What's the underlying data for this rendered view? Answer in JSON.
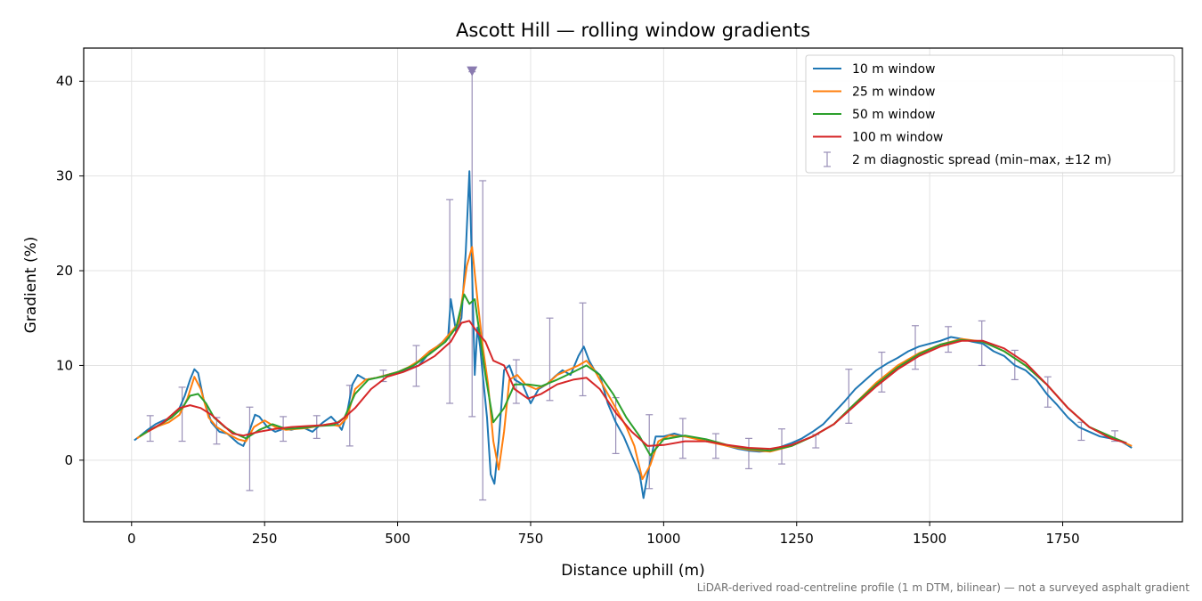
{
  "chart_data": {
    "type": "line",
    "title": "Ascott Hill — rolling window gradients",
    "xlabel": "Distance uphill (m)",
    "ylabel": "Gradient (%)",
    "xlim": [
      -90,
      1975
    ],
    "ylim": [
      -6.5,
      43.5
    ],
    "xticks": [
      0,
      250,
      500,
      750,
      1000,
      1250,
      1500,
      1750
    ],
    "yticks": [
      0,
      10,
      20,
      30,
      40
    ],
    "grid": true,
    "legend_position": "top-right",
    "footnote": "LiDAR-derived road-centreline profile (1 m DTM, bilinear) — not a surveyed asphalt gradient",
    "series": [
      {
        "name": "10 m window",
        "color": "#1f77b4",
        "x": [
          5,
          15,
          30,
          45,
          60,
          75,
          90,
          100,
          110,
          118,
          125,
          135,
          150,
          165,
          180,
          190,
          200,
          210,
          220,
          232,
          240,
          255,
          270,
          285,
          300,
          320,
          340,
          360,
          375,
          385,
          395,
          405,
          415,
          425,
          440,
          460,
          480,
          500,
          520,
          540,
          555,
          570,
          585,
          595,
          600,
          610,
          620,
          628,
          635,
          640,
          645,
          650,
          655,
          660,
          668,
          675,
          682,
          690,
          700,
          710,
          720,
          735,
          750,
          765,
          780,
          795,
          810,
          825,
          840,
          850,
          860,
          870,
          880,
          895,
          910,
          925,
          940,
          955,
          962,
          970,
          985,
          1000,
          1020,
          1040,
          1060,
          1080,
          1100,
          1120,
          1140,
          1160,
          1180,
          1200,
          1220,
          1240,
          1260,
          1280,
          1300,
          1320,
          1340,
          1360,
          1380,
          1400,
          1420,
          1440,
          1460,
          1480,
          1500,
          1520,
          1540,
          1560,
          1580,
          1600,
          1620,
          1640,
          1660,
          1680,
          1700,
          1720,
          1740,
          1760,
          1780,
          1800,
          1820,
          1840,
          1860,
          1880
        ],
        "y": [
          2.1,
          2.5,
          3.2,
          3.8,
          4.2,
          4.5,
          5.5,
          6.8,
          8.5,
          9.6,
          9.2,
          6.5,
          4.0,
          3.0,
          2.8,
          2.3,
          1.8,
          1.5,
          2.8,
          4.8,
          4.6,
          3.5,
          3.0,
          3.3,
          3.2,
          3.5,
          3.0,
          4.0,
          4.6,
          4.0,
          3.2,
          5.0,
          8.0,
          9.0,
          8.5,
          8.7,
          9.0,
          9.3,
          9.6,
          10.0,
          11.0,
          11.8,
          12.5,
          13.0,
          17.0,
          13.5,
          15.0,
          22.0,
          30.5,
          20.0,
          9.0,
          14.0,
          12.0,
          9.0,
          4.5,
          -1.5,
          -2.5,
          2.0,
          9.5,
          10.0,
          8.5,
          8.0,
          6.0,
          7.5,
          8.0,
          8.8,
          9.5,
          9.0,
          11.0,
          12.0,
          10.5,
          9.5,
          9.0,
          6.0,
          4.0,
          2.5,
          0.5,
          -1.5,
          -4.0,
          -1.5,
          2.5,
          2.5,
          2.8,
          2.5,
          2.3,
          2.0,
          1.8,
          1.5,
          1.2,
          1.0,
          0.9,
          1.0,
          1.4,
          1.8,
          2.3,
          3.0,
          3.8,
          5.0,
          6.2,
          7.5,
          8.5,
          9.5,
          10.2,
          10.8,
          11.5,
          12.0,
          12.3,
          12.6,
          13.0,
          12.8,
          12.5,
          12.3,
          11.5,
          11.0,
          10.0,
          9.5,
          8.5,
          7.0,
          5.8,
          4.5,
          3.5,
          3.0,
          2.5,
          2.3,
          2.0,
          1.3
        ]
      },
      {
        "name": "25 m window",
        "color": "#ff7f0e",
        "x": [
          10,
          30,
          50,
          70,
          90,
          105,
          118,
          130,
          145,
          160,
          180,
          200,
          215,
          230,
          250,
          270,
          290,
          310,
          330,
          350,
          370,
          390,
          405,
          420,
          440,
          460,
          480,
          500,
          520,
          540,
          560,
          580,
          600,
          615,
          630,
          640,
          650,
          660,
          670,
          680,
          690,
          700,
          710,
          725,
          740,
          760,
          780,
          800,
          820,
          840,
          855,
          870,
          890,
          910,
          930,
          945,
          960,
          975,
          990,
          1010,
          1040,
          1080,
          1120,
          1160,
          1200,
          1240,
          1280,
          1320,
          1360,
          1400,
          1440,
          1480,
          1520,
          1560,
          1600,
          1640,
          1680,
          1720,
          1760,
          1800,
          1840,
          1880
        ],
        "y": [
          2.3,
          3.0,
          3.6,
          4.0,
          4.8,
          6.5,
          8.8,
          7.5,
          4.5,
          3.5,
          2.8,
          2.2,
          2.0,
          3.5,
          4.2,
          3.5,
          3.2,
          3.3,
          3.4,
          3.6,
          3.8,
          3.6,
          4.5,
          7.5,
          8.5,
          8.7,
          9.0,
          9.3,
          9.8,
          10.5,
          11.5,
          12.2,
          13.5,
          14.5,
          20.5,
          22.5,
          17.0,
          12.0,
          8.0,
          2.0,
          -1.0,
          3.0,
          8.5,
          9.0,
          8.0,
          7.5,
          8.0,
          9.0,
          9.5,
          10.0,
          10.5,
          9.5,
          7.5,
          5.5,
          3.5,
          1.5,
          -2.0,
          -0.5,
          2.0,
          2.6,
          2.5,
          2.0,
          1.5,
          1.1,
          0.9,
          1.5,
          2.5,
          3.8,
          6.0,
          8.2,
          10.0,
          11.3,
          12.2,
          12.8,
          12.5,
          11.5,
          10.0,
          8.0,
          5.5,
          3.5,
          2.5,
          1.5
        ]
      },
      {
        "name": "50 m window",
        "color": "#2ca02c",
        "x": [
          15,
          35,
          55,
          75,
          95,
          110,
          125,
          140,
          155,
          175,
          195,
          215,
          240,
          265,
          290,
          320,
          350,
          380,
          400,
          420,
          445,
          470,
          500,
          530,
          560,
          590,
          610,
          625,
          635,
          645,
          655,
          665,
          680,
          700,
          720,
          745,
          770,
          800,
          830,
          855,
          880,
          905,
          930,
          955,
          975,
          1000,
          1040,
          1080,
          1120,
          1160,
          1200,
          1240,
          1280,
          1320,
          1360,
          1400,
          1440,
          1480,
          1520,
          1560,
          1600,
          1640,
          1680,
          1720,
          1760,
          1800,
          1840,
          1870
        ],
        "y": [
          2.5,
          3.2,
          3.8,
          4.5,
          5.5,
          6.8,
          7.0,
          6.0,
          4.5,
          3.5,
          2.8,
          2.3,
          3.2,
          3.8,
          3.3,
          3.4,
          3.6,
          3.7,
          4.5,
          7.0,
          8.5,
          8.8,
          9.3,
          10.0,
          11.2,
          12.5,
          14.0,
          17.5,
          16.5,
          17.0,
          13.0,
          9.0,
          4.0,
          5.5,
          8.0,
          8.0,
          7.8,
          8.5,
          9.3,
          10.0,
          9.0,
          7.0,
          4.5,
          2.5,
          0.5,
          2.2,
          2.6,
          2.2,
          1.6,
          1.2,
          1.0,
          1.5,
          2.5,
          3.8,
          6.0,
          8.0,
          9.8,
          11.2,
          12.2,
          12.7,
          12.5,
          11.5,
          10.0,
          8.0,
          5.5,
          3.5,
          2.5,
          1.8
        ]
      },
      {
        "name": "100 m window",
        "color": "#d62728",
        "x": [
          30,
          60,
          90,
          110,
          130,
          150,
          170,
          190,
          210,
          240,
          270,
          300,
          330,
          360,
          390,
          420,
          450,
          480,
          510,
          540,
          570,
          600,
          620,
          635,
          650,
          665,
          680,
          700,
          720,
          745,
          770,
          800,
          830,
          855,
          880,
          910,
          940,
          970,
          1000,
          1040,
          1080,
          1120,
          1160,
          1200,
          1240,
          1280,
          1320,
          1360,
          1400,
          1440,
          1480,
          1520,
          1560,
          1600,
          1640,
          1680,
          1720,
          1760,
          1800,
          1840,
          1870
        ],
        "y": [
          3.0,
          4.0,
          5.5,
          5.8,
          5.5,
          4.8,
          3.8,
          2.8,
          2.6,
          3.0,
          3.3,
          3.5,
          3.6,
          3.7,
          4.0,
          5.5,
          7.5,
          8.8,
          9.3,
          10.0,
          11.0,
          12.5,
          14.5,
          14.7,
          13.5,
          12.5,
          10.5,
          10.0,
          7.5,
          6.5,
          7.0,
          8.0,
          8.5,
          8.7,
          7.5,
          5.0,
          3.0,
          1.5,
          1.6,
          2.0,
          2.0,
          1.6,
          1.3,
          1.2,
          1.6,
          2.5,
          3.8,
          5.8,
          7.8,
          9.6,
          11.0,
          12.0,
          12.6,
          12.6,
          11.8,
          10.3,
          8.0,
          5.5,
          3.5,
          2.3,
          1.8
        ]
      },
      {
        "name": "2 m diagnostic spread (min–max, ±12 m)",
        "type": "errorbar",
        "color": "#9a90b8",
        "x": [
          35,
          95,
          160,
          222,
          285,
          348,
          410,
          473,
          535,
          598,
          640,
          660,
          723,
          786,
          848,
          910,
          973,
          1036,
          1098,
          1160,
          1222,
          1286,
          1348,
          1410,
          1473,
          1535,
          1598,
          1660,
          1722,
          1785,
          1848
        ],
        "low": [
          2.0,
          2.0,
          1.7,
          -3.2,
          2.0,
          2.3,
          1.5,
          8.3,
          7.8,
          6.0,
          4.6,
          -4.2,
          6.0,
          6.3,
          6.8,
          0.7,
          -3.0,
          0.2,
          0.2,
          -0.9,
          -0.4,
          1.3,
          3.9,
          7.2,
          9.6,
          11.4,
          10.0,
          8.5,
          5.6,
          2.1,
          2.0
        ],
        "high": [
          4.7,
          7.7,
          4.5,
          5.6,
          4.6,
          4.7,
          7.9,
          9.5,
          12.1,
          27.5,
          41.0,
          29.5,
          10.6,
          15.0,
          16.6,
          6.6,
          4.8,
          4.4,
          2.8,
          2.3,
          3.3,
          2.7,
          9.6,
          11.4,
          14.2,
          14.1,
          14.7,
          11.6,
          8.8,
          4.0,
          3.1
        ],
        "capped_marker": {
          "x": 640,
          "y": 41.0
        }
      }
    ]
  }
}
